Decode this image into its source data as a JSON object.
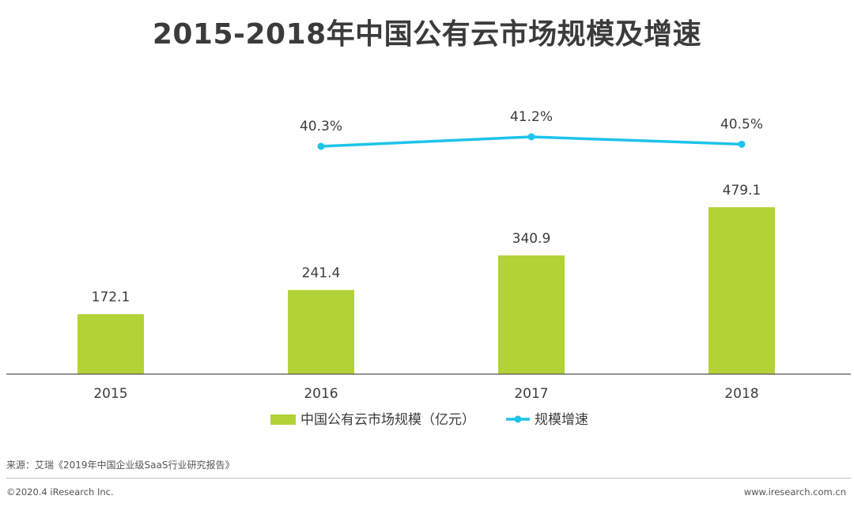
{
  "title": "2015-2018年中国公有云市场规模及增速",
  "chart_data": {
    "type": "bar+line",
    "categories": [
      "2015",
      "2016",
      "2017",
      "2018"
    ],
    "series": [
      {
        "name": "中国公有云市场规模（亿元）",
        "type": "bar",
        "values": [
          172.1,
          241.4,
          340.9,
          479.1
        ],
        "labels": [
          "172.1",
          "241.4",
          "340.9",
          "479.1"
        ],
        "color": "#b2d235"
      },
      {
        "name": "规模增速",
        "type": "line",
        "values": [
          null,
          40.3,
          41.2,
          40.5
        ],
        "labels": [
          "",
          "40.3%",
          "41.2%",
          "40.5%"
        ],
        "color": "#1ec3ea"
      }
    ],
    "ylim_bar": [
      0,
      600
    ],
    "ylim_line": [
      30,
      45
    ],
    "grid": false,
    "legend_position": "bottom-center"
  },
  "footer": {
    "source": "来源：艾瑞《2019年中国企业级SaaS行业研究报告》",
    "copyright": "©2020.4 iResearch Inc.",
    "website": "www.iresearch.com.cn"
  },
  "colors": {
    "bar": "#b2d235",
    "line": "#1ec3ea",
    "axis": "#555555",
    "text": "#3b3b3b"
  }
}
